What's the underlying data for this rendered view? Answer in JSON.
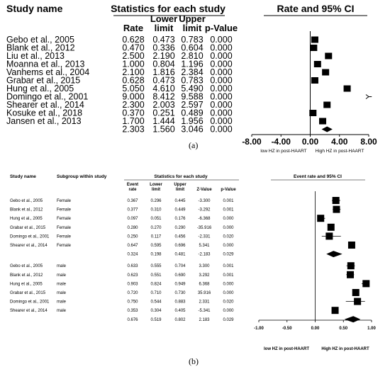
{
  "chart_data": [
    {
      "type": "forest",
      "panel_label": "(a)",
      "headers": {
        "study": "Study name",
        "stats_group": "Statistics for each study",
        "rate": "Rate",
        "lower": [
          "Lower",
          "limit"
        ],
        "upper": [
          "Upper",
          "limit"
        ],
        "p": "p-Value",
        "plot": "Rate and 95% CI"
      },
      "xlim": [
        -8,
        8
      ],
      "ticks": [
        "-8.00",
        "-4.00",
        "0.00",
        "4.00",
        "8.00"
      ],
      "tick_values": [
        -8,
        -4,
        0,
        4,
        8
      ],
      "xlabel_left": "low HZ in post-HAART",
      "xlabel_right": "High HZ in post-HAART",
      "studies": [
        {
          "name": "Gebo et al., 2005",
          "rate": "0.628",
          "lower": "0.473",
          "upper": "0.783",
          "p": "0.000",
          "v": 0.628,
          "lo": 0.473,
          "hi": 0.783
        },
        {
          "name": "Blank et al., 2012",
          "rate": "0.470",
          "lower": "0.336",
          "upper": "0.604",
          "p": "0.000",
          "v": 0.47,
          "lo": 0.336,
          "hi": 0.604
        },
        {
          "name": "Liu et al., 2013",
          "rate": "2.500",
          "lower": "2.190",
          "upper": "2.810",
          "p": "0.000",
          "v": 2.5,
          "lo": 2.19,
          "hi": 2.81
        },
        {
          "name": "Moanna et al., 2013",
          "rate": "1.000",
          "lower": "0.804",
          "upper": "1.196",
          "p": "0.000",
          "v": 1.0,
          "lo": 0.804,
          "hi": 1.196
        },
        {
          "name": "Vanhems et al., 2004",
          "rate": "2.100",
          "lower": "1.816",
          "upper": "2.384",
          "p": "0.000",
          "v": 2.1,
          "lo": 1.816,
          "hi": 2.384
        },
        {
          "name": "Grabar et al., 2015",
          "rate": "0.628",
          "lower": "0.473",
          "upper": "0.783",
          "p": "0.000",
          "v": 0.628,
          "lo": 0.473,
          "hi": 0.783
        },
        {
          "name": "Hung et al., 2005",
          "rate": "5.050",
          "lower": "4.610",
          "upper": "5.490",
          "p": "0.000",
          "v": 5.05,
          "lo": 4.61,
          "hi": 5.49
        },
        {
          "name": "Domingo et al., 2001",
          "rate": "9.000",
          "lower": "8.412",
          "upper": "9.588",
          "p": "0.000",
          "v": 9.0,
          "lo": 8.412,
          "hi": 9.588
        },
        {
          "name": "Shearer et al., 2014",
          "rate": "2.300",
          "lower": "2.003",
          "upper": "2.597",
          "p": "0.000",
          "v": 2.3,
          "lo": 2.003,
          "hi": 2.597
        },
        {
          "name": "Kosuke et al., 2018",
          "rate": "0.370",
          "lower": "0.251",
          "upper": "0.489",
          "p": "0.000",
          "v": 0.37,
          "lo": 0.251,
          "hi": 0.489
        },
        {
          "name": "Jansen et al., 2013",
          "rate": "1.700",
          "lower": "1.444",
          "upper": "1.956",
          "p": "0.000",
          "v": 1.7,
          "lo": 1.444,
          "hi": 1.956
        }
      ],
      "summary": {
        "rate": "2.303",
        "lower": "1.560",
        "upper": "3.046",
        "p": "0.000",
        "v": 2.303,
        "lo": 1.56,
        "hi": 3.046
      }
    },
    {
      "type": "forest",
      "panel_label": "(b)",
      "headers": {
        "study": "Study name",
        "subgroup": "Subgroup within study",
        "stats_group": "Statistics for each study",
        "rate": [
          "Event",
          "rate"
        ],
        "lower": [
          "Lower",
          "limit"
        ],
        "upper": [
          "Upper",
          "limit"
        ],
        "z": "Z-Value",
        "p": "p-Value",
        "plot": "Event rate and 95% CI"
      },
      "xlim": [
        -1,
        1
      ],
      "ticks": [
        "-1.00",
        "-0.50",
        "0.00",
        "0.50",
        "1.00"
      ],
      "tick_values": [
        -1,
        -0.5,
        0,
        0.5,
        1
      ],
      "xlabel_left": "low HZ in post-HAART",
      "xlabel_right": "High HZ in post-HAART",
      "groups": [
        {
          "rows": [
            {
              "name": "Gebo et al., 2005",
              "subgroup": "Female",
              "rate": "0.367",
              "lower": "0.296",
              "upper": "0.445",
              "z": "-3.300",
              "p": "0.001",
              "v": 0.367,
              "lo": 0.296,
              "hi": 0.445
            },
            {
              "name": "Blank et al., 2012",
              "subgroup": "Female",
              "rate": "0.377",
              "lower": "0.310",
              "upper": "0.449",
              "z": "-3.292",
              "p": "0.001",
              "v": 0.377,
              "lo": 0.31,
              "hi": 0.449
            },
            {
              "name": "Hung et al., 2005",
              "subgroup": "Female",
              "rate": "0.097",
              "lower": "0.051",
              "upper": "0.176",
              "z": "-6.368",
              "p": "0.000",
              "v": 0.097,
              "lo": 0.051,
              "hi": 0.176
            },
            {
              "name": "Grabar et al., 2015",
              "subgroup": "Female",
              "rate": "0.280",
              "lower": "0.270",
              "upper": "0.290",
              "z": "-35.916",
              "p": "0.000",
              "v": 0.28,
              "lo": 0.27,
              "hi": 0.29
            },
            {
              "name": "Domingo et al., 2001",
              "subgroup": "Female",
              "rate": "0.250",
              "lower": "0.117",
              "upper": "0.456",
              "z": "-2.331",
              "p": "0.020",
              "v": 0.25,
              "lo": 0.117,
              "hi": 0.456
            },
            {
              "name": "Shearer et al., 2014",
              "subgroup": "Female",
              "rate": "0.647",
              "lower": "0.595",
              "upper": "0.696",
              "z": "5.341",
              "p": "0.000",
              "v": 0.647,
              "lo": 0.595,
              "hi": 0.696
            }
          ],
          "summary": {
            "rate": "0.324",
            "lower": "0.198",
            "upper": "0.481",
            "z": "-2.183",
            "p": "0.029",
            "v": 0.324,
            "lo": 0.198,
            "hi": 0.481
          }
        },
        {
          "rows": [
            {
              "name": "Gebo et al., 2005",
              "subgroup": "male",
              "rate": "0.633",
              "lower": "0.555",
              "upper": "0.704",
              "z": "3.300",
              "p": "0.001",
              "v": 0.633,
              "lo": 0.555,
              "hi": 0.704
            },
            {
              "name": "Blank et al., 2012",
              "subgroup": "male",
              "rate": "0.623",
              "lower": "0.551",
              "upper": "0.690",
              "z": "3.292",
              "p": "0.001",
              "v": 0.623,
              "lo": 0.551,
              "hi": 0.69
            },
            {
              "name": "Hung et al., 2005",
              "subgroup": "male",
              "rate": "0.903",
              "lower": "0.824",
              "upper": "0.949",
              "z": "6.368",
              "p": "0.000",
              "v": 0.903,
              "lo": 0.824,
              "hi": 0.949
            },
            {
              "name": "Grabar et al., 2015",
              "subgroup": "male",
              "rate": "0.720",
              "lower": "0.710",
              "upper": "0.730",
              "z": "35.916",
              "p": "0.000",
              "v": 0.72,
              "lo": 0.71,
              "hi": 0.73
            },
            {
              "name": "Domingo et al., 2001",
              "subgroup": "male",
              "rate": "0.750",
              "lower": "0.544",
              "upper": "0.883",
              "z": "2.331",
              "p": "0.020",
              "v": 0.75,
              "lo": 0.544,
              "hi": 0.883
            },
            {
              "name": "Shearer et al., 2014",
              "subgroup": "male",
              "rate": "0.353",
              "lower": "0.304",
              "upper": "0.405",
              "z": "-5.341",
              "p": "0.000",
              "v": 0.353,
              "lo": 0.304,
              "hi": 0.405
            }
          ],
          "summary": {
            "rate": "0.676",
            "lower": "0.519",
            "upper": "0.802",
            "z": "2.183",
            "p": "0.029",
            "v": 0.676,
            "lo": 0.519,
            "hi": 0.802
          }
        }
      ]
    }
  ]
}
